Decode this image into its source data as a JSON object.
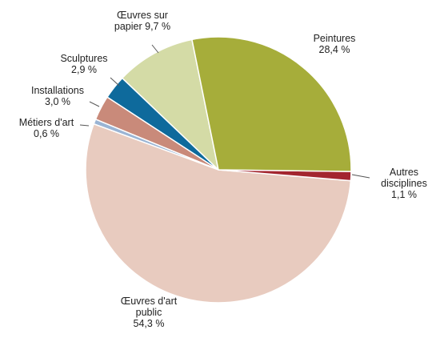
{
  "chart_data": {
    "type": "pie",
    "categories": [
      "Peintures",
      "Autres disciplines",
      "Œuvres d'art public",
      "Métiers d'art",
      "Installations",
      "Sculptures",
      "Œuvres sur papier"
    ],
    "values": [
      28.4,
      1.1,
      54.3,
      0.6,
      3.0,
      2.9,
      9.7
    ],
    "value_labels": [
      "28,4 %",
      "1,1 %",
      "54,3 %",
      "0,6 %",
      "3,0 %",
      "2,9 %",
      "9,7 %"
    ],
    "colors": [
      "#a6ad3a",
      "#a3262f",
      "#e8cbbf",
      "#9ab4d4",
      "#c98a7a",
      "#0e6a9c",
      "#d4dba6"
    ]
  }
}
